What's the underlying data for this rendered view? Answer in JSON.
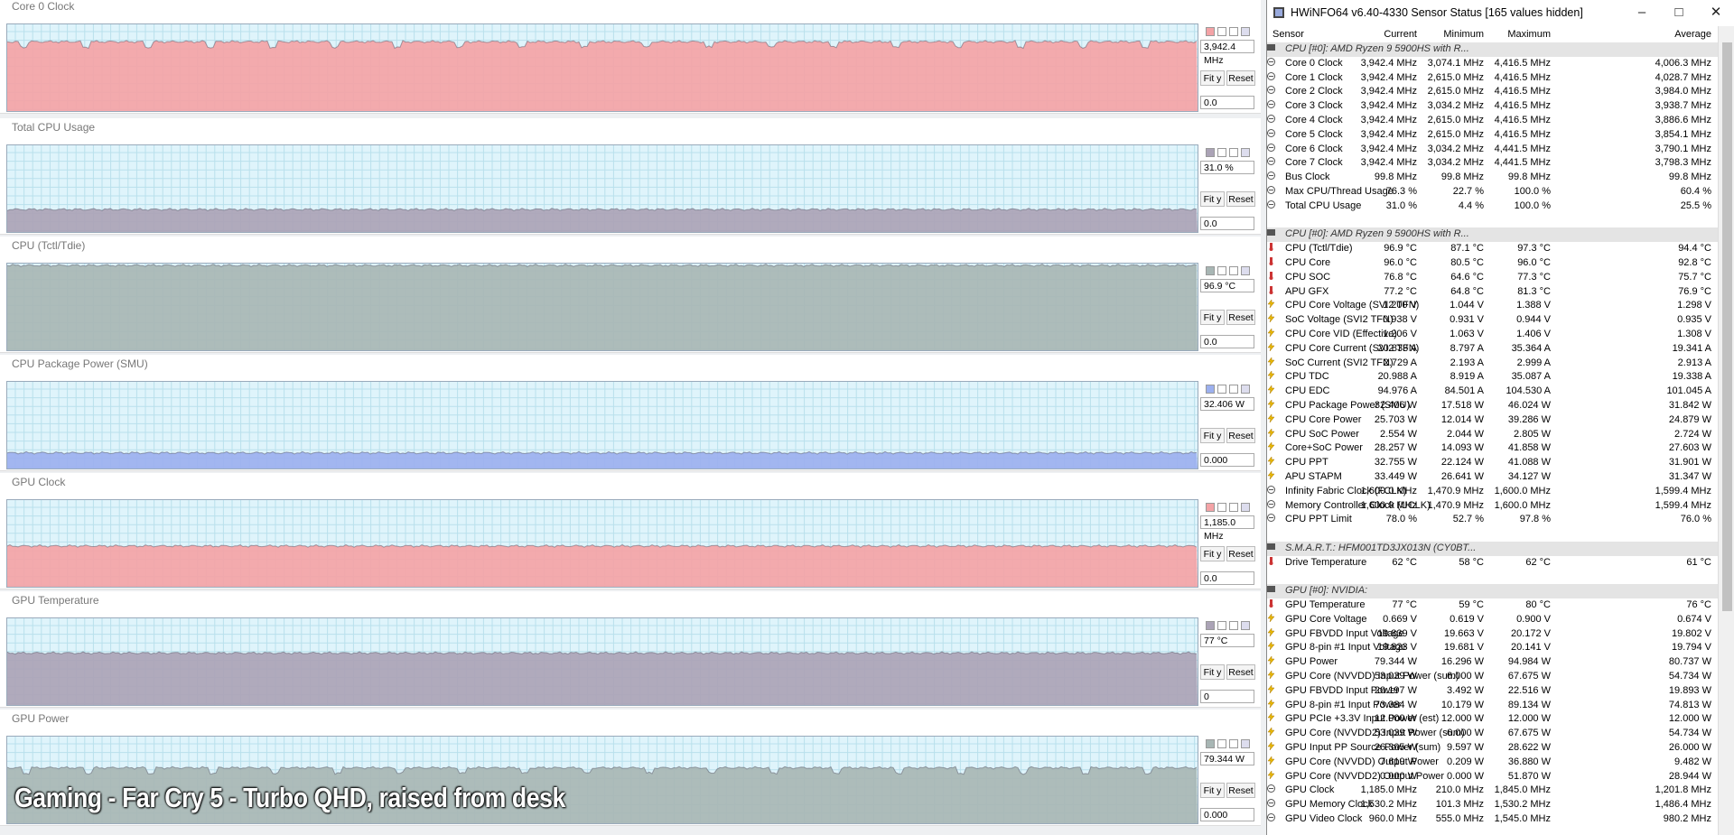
{
  "caption": "Gaming - Far Cry 5 - Turbo QHD, raised from desk",
  "buttons": {
    "fit": "Fit y",
    "reset": "Reset"
  },
  "graphs": [
    {
      "title": "Core 0 Clock",
      "current": "3,942.4 MHz",
      "min": "0.0",
      "color": "#f4a3a6"
    },
    {
      "title": "Total CPU Usage",
      "current": "31.0 %",
      "min": "0.0",
      "color": "#aba3b6"
    },
    {
      "title": "CPU (Tctl/Tdie)",
      "current": "96.9 °C",
      "min": "0.0",
      "color": "#a8b6b4"
    },
    {
      "title": "CPU Package Power (SMU)",
      "current": "32.406 W",
      "min": "0.000",
      "color": "#9cb0ef"
    },
    {
      "title": "GPU Clock",
      "current": "1,185.0 MHz",
      "min": "0.0",
      "color": "#f4a3a6"
    },
    {
      "title": "GPU Temperature",
      "current": "77 °C",
      "min": "0",
      "color": "#aba3b6"
    },
    {
      "title": "GPU Power",
      "current": "79.344 W",
      "min": "0.000",
      "color": "#a8b6b4"
    }
  ],
  "window": {
    "title": "HWiNFO64 v6.40-4330 Sensor Status [165 values hidden]",
    "columns": [
      "Sensor",
      "Current",
      "Minimum",
      "Maximum",
      "Average"
    ],
    "groups": [
      {
        "title": "CPU [#0]: AMD Ryzen 9 5900HS with R...",
        "rows": [
          [
            "Core 0 Clock",
            "3,942.4 MHz",
            "3,074.1 MHz",
            "4,416.5 MHz",
            "4,006.3 MHz"
          ],
          [
            "Core 1 Clock",
            "3,942.4 MHz",
            "2,615.0 MHz",
            "4,416.5 MHz",
            "4,028.7 MHz"
          ],
          [
            "Core 2 Clock",
            "3,942.4 MHz",
            "2,615.0 MHz",
            "4,416.5 MHz",
            "3,984.0 MHz"
          ],
          [
            "Core 3 Clock",
            "3,942.4 MHz",
            "3,034.2 MHz",
            "4,416.5 MHz",
            "3,938.7 MHz"
          ],
          [
            "Core 4 Clock",
            "3,942.4 MHz",
            "2,615.0 MHz",
            "4,416.5 MHz",
            "3,886.6 MHz"
          ],
          [
            "Core 5 Clock",
            "3,942.4 MHz",
            "2,615.0 MHz",
            "4,416.5 MHz",
            "3,854.1 MHz"
          ],
          [
            "Core 6 Clock",
            "3,942.4 MHz",
            "3,034.2 MHz",
            "4,441.5 MHz",
            "3,790.1 MHz"
          ],
          [
            "Core 7 Clock",
            "3,942.4 MHz",
            "3,034.2 MHz",
            "4,441.5 MHz",
            "3,798.3 MHz"
          ],
          [
            "Bus Clock",
            "99.8 MHz",
            "99.8 MHz",
            "99.8 MHz",
            "99.8 MHz"
          ],
          [
            "Max CPU/Thread Usage",
            "76.3 %",
            "22.7 %",
            "100.0 %",
            "60.4 %"
          ],
          [
            "Total CPU Usage",
            "31.0 %",
            "4.4 %",
            "100.0 %",
            "25.5 %"
          ]
        ]
      },
      {
        "title": "CPU [#0]: AMD Ryzen 9 5900HS with R...",
        "rows": [
          [
            "CPU (Tctl/Tdie)",
            "96.9 °C",
            "87.1 °C",
            "97.3 °C",
            "94.4 °C"
          ],
          [
            "CPU Core",
            "96.0 °C",
            "80.5 °C",
            "96.0 °C",
            "92.8 °C"
          ],
          [
            "CPU SOC",
            "76.8 °C",
            "64.6 °C",
            "77.3 °C",
            "75.7 °C"
          ],
          [
            "APU GFX",
            "77.2 °C",
            "64.8 °C",
            "81.3 °C",
            "76.9 °C"
          ],
          [
            "CPU Core Voltage (SVI2 TFN)",
            "1.200 V",
            "1.044 V",
            "1.388 V",
            "1.298 V"
          ],
          [
            "SoC Voltage (SVI2 TFN)",
            "0.938 V",
            "0.931 V",
            "0.944 V",
            "0.935 V"
          ],
          [
            "CPU Core VID (Effective)",
            "1.206 V",
            "1.063 V",
            "1.406 V",
            "1.308 V"
          ],
          [
            "CPU Core Current (SVI2 TFN)",
            "20.833 A",
            "8.797 A",
            "35.364 A",
            "19.341 A"
          ],
          [
            "SoC Current (SVI2 TFN)",
            "2.729 A",
            "2.193 A",
            "2.999 A",
            "2.913 A"
          ],
          [
            "CPU TDC",
            "20.988 A",
            "8.919 A",
            "35.087 A",
            "19.338 A"
          ],
          [
            "CPU EDC",
            "94.976 A",
            "84.501 A",
            "104.530 A",
            "101.045 A"
          ],
          [
            "CPU Package Power (SMU)",
            "32.406 W",
            "17.518 W",
            "46.024 W",
            "31.842 W"
          ],
          [
            "CPU Core Power",
            "25.703 W",
            "12.014 W",
            "39.286 W",
            "24.879 W"
          ],
          [
            "CPU SoC Power",
            "2.554 W",
            "2.044 W",
            "2.805 W",
            "2.724 W"
          ],
          [
            "Core+SoC Power",
            "28.257 W",
            "14.093 W",
            "41.858 W",
            "27.603 W"
          ],
          [
            "CPU PPT",
            "32.755 W",
            "22.124 W",
            "41.088 W",
            "31.901 W"
          ],
          [
            "APU STAPM",
            "33.449 W",
            "26.641 W",
            "34.127 W",
            "31.347 W"
          ],
          [
            "Infinity Fabric Clock (FCLK)",
            "1,600.0 MHz",
            "1,470.9 MHz",
            "1,600.0 MHz",
            "1,599.4 MHz"
          ],
          [
            "Memory Controller Clock (UCLK)",
            "1,600.0 MHz",
            "1,470.9 MHz",
            "1,600.0 MHz",
            "1,599.4 MHz"
          ],
          [
            "CPU PPT Limit",
            "78.0 %",
            "52.7 %",
            "97.8 %",
            "76.0 %"
          ]
        ]
      },
      {
        "title": "S.M.A.R.T.: HFM001TD3JX013N (CY0BT...",
        "rows": [
          [
            "Drive Temperature",
            "62 °C",
            "58 °C",
            "62 °C",
            "61 °C"
          ]
        ]
      },
      {
        "title": "GPU [#0]: NVIDIA:",
        "rows": [
          [
            "GPU Temperature",
            "77 °C",
            "59 °C",
            "80 °C",
            "76 °C"
          ],
          [
            "GPU Core Voltage",
            "0.669 V",
            "0.619 V",
            "0.900 V",
            "0.674 V"
          ],
          [
            "GPU FBVDD Input Voltage",
            "19.839 V",
            "19.663 V",
            "20.172 V",
            "19.802 V"
          ],
          [
            "GPU 8-pin #1 Input Voltage",
            "19.823 V",
            "19.681 V",
            "20.141 V",
            "19.794 V"
          ],
          [
            "GPU Power",
            "79.344 W",
            "16.296 W",
            "94.984 W",
            "80.737 W"
          ],
          [
            "GPU Core (NVVDD) Input Power (sum)",
            "53.039 W",
            "6.000 W",
            "67.675 W",
            "54.734 W"
          ],
          [
            "GPU FBVDD Input Power",
            "20.197 W",
            "3.492 W",
            "22.516 W",
            "19.893 W"
          ],
          [
            "GPU 8-pin #1 Input Power",
            "73.384 W",
            "10.179 W",
            "89.134 W",
            "74.813 W"
          ],
          [
            "GPU PCIe +3.3V Input Power (est)",
            "12.000 W",
            "12.000 W",
            "12.000 W",
            "12.000 W"
          ],
          [
            "GPU Core (NVVDD2) Input Power (sum)",
            "53.039 W",
            "6.000 W",
            "67.675 W",
            "54.734 W"
          ],
          [
            "GPU Input PP Source Power (sum)",
            "26.305 W",
            "9.597 W",
            "28.622 W",
            "26.000 W"
          ],
          [
            "GPU Core (NVVDD) Output Power",
            "7.619 W",
            "0.209 W",
            "36.880 W",
            "9.482 W"
          ],
          [
            "GPU Core (NVVDD2) Output Power",
            "0.000 W",
            "0.000 W",
            "51.870 W",
            "28.944 W"
          ],
          [
            "GPU Clock",
            "1,185.0 MHz",
            "210.0 MHz",
            "1,845.0 MHz",
            "1,201.8 MHz"
          ],
          [
            "GPU Memory Clock",
            "1,530.2 MHz",
            "101.3 MHz",
            "1,530.2 MHz",
            "1,486.4 MHz"
          ],
          [
            "GPU Video Clock",
            "960.0 MHz",
            "555.0 MHz",
            "1,545.0 MHz",
            "980.2 MHz"
          ]
        ]
      }
    ]
  }
}
